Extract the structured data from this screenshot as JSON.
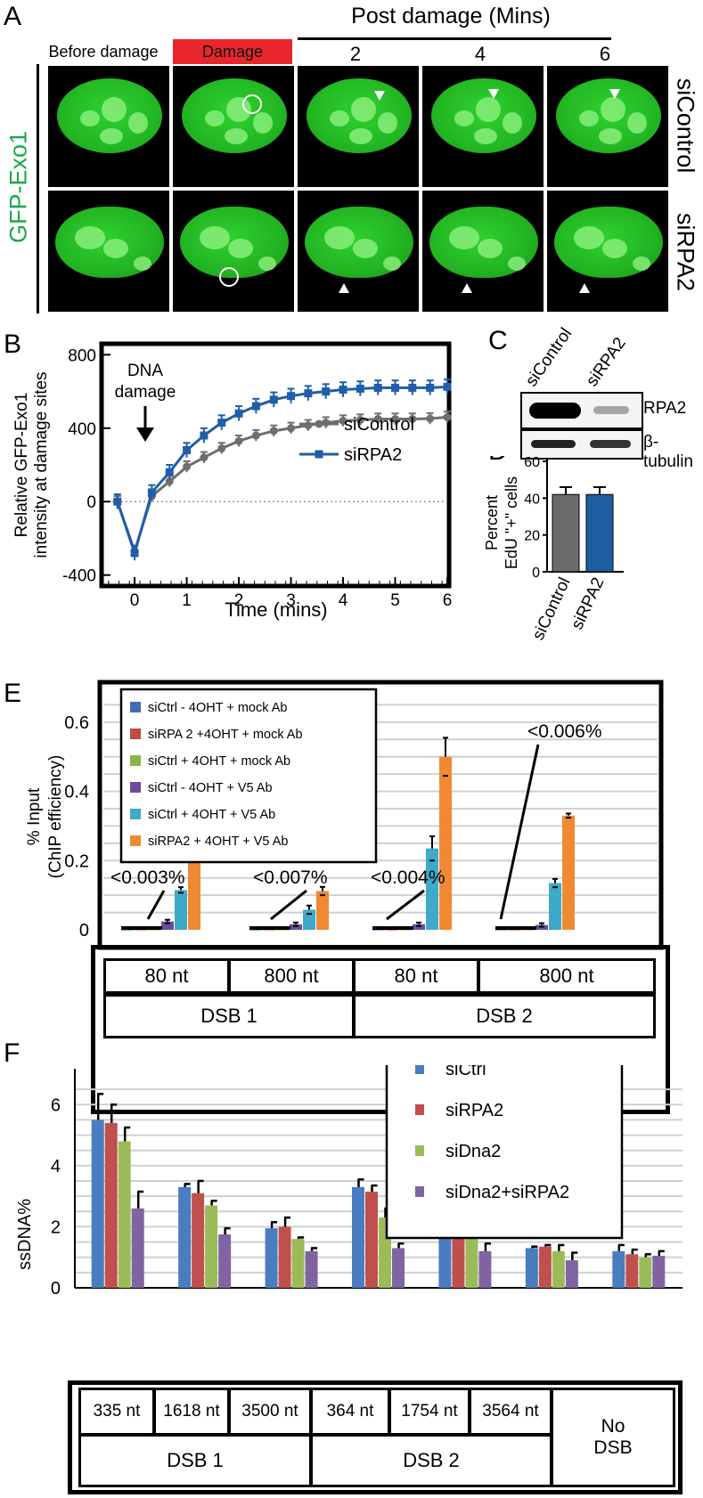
{
  "panelA": {
    "label": "A",
    "post_damage_header": "Post damage (Mins)",
    "col_before": "Before damage",
    "col_damage": "Damage",
    "col_t2": "2",
    "col_t4": "4",
    "col_t6": "6",
    "ylabel": "GFP-Exo1",
    "row1": "siControl",
    "row2": "siRPA2",
    "damage_color": "#e8262c",
    "gfp_color": "#1aa84a"
  },
  "panelB": {
    "label": "B",
    "annotation": "DNA damage"
  },
  "panelC": {
    "label": "C",
    "lane1": "siControl",
    "lane2": "siRPA2",
    "band1": "RPA2",
    "band2": "β-tubulin"
  },
  "panelE": {
    "label": "E",
    "callouts": [
      "<0.003%",
      "<0.007%",
      "<0.004%",
      "<0.006%"
    ],
    "row1": [
      "80 nt",
      "800 nt",
      "80 nt",
      "800 nt"
    ],
    "row2": [
      "DSB 1",
      "DSB 2"
    ]
  },
  "panelF": {
    "label": "F",
    "row1": [
      "335 nt",
      "1618 nt",
      "3500 nt",
      "364 nt",
      "1754 nt",
      "3564 nt"
    ],
    "nodsb": "No DSB",
    "row2": [
      "DSB 1",
      "DSB 2"
    ]
  },
  "chart_data": [
    {
      "id": "B",
      "type": "line",
      "title": "",
      "xlabel": "Time (mins)",
      "ylabel": "Relative GFP-Exo1 intensity at damage sites",
      "xlim": [
        -0.6,
        6
      ],
      "ylim": [
        -450,
        850
      ],
      "xticks": [
        "0",
        "1",
        "2",
        "3",
        "4",
        "5",
        "6"
      ],
      "yticks": [
        "-400",
        "0",
        "400",
        "800"
      ],
      "legend": [
        "siControl",
        "siRPA2"
      ],
      "legend_position": "middle-right",
      "series": [
        {
          "name": "siControl",
          "color": "#6e6e6e",
          "x": [
            -0.33,
            0,
            0.33,
            0.67,
            1,
            1.33,
            1.67,
            2,
            2.33,
            2.67,
            3,
            3.33,
            3.67,
            4,
            4.33,
            4.67,
            5,
            5.33,
            5.67,
            6
          ],
          "y": [
            0,
            -270,
            30,
            110,
            190,
            240,
            290,
            330,
            360,
            385,
            400,
            415,
            430,
            440,
            445,
            450,
            450,
            450,
            452,
            460
          ],
          "err": 30
        },
        {
          "name": "siRPA2",
          "color": "#1f5ea8",
          "x": [
            -0.33,
            0,
            0.33,
            0.67,
            1,
            1.33,
            1.67,
            2,
            2.33,
            2.67,
            3,
            3.33,
            3.67,
            4,
            4.33,
            4.67,
            5,
            5.33,
            5.67,
            6
          ],
          "y": [
            0,
            -280,
            50,
            160,
            280,
            360,
            430,
            480,
            520,
            555,
            575,
            590,
            600,
            610,
            615,
            620,
            620,
            620,
            620,
            625
          ],
          "err": 40
        }
      ]
    },
    {
      "id": "D",
      "type": "bar",
      "ylabel": "Percent EdU \"+\" cells",
      "categories": [
        "siControl",
        "siRPA2"
      ],
      "values": [
        42,
        42
      ],
      "errors": [
        4,
        4
      ],
      "colors": [
        "#6b6b6b",
        "#1d5ea0"
      ],
      "yticks": [
        "0",
        "20",
        "40",
        "60"
      ],
      "ylim": [
        0,
        60
      ]
    },
    {
      "id": "E",
      "type": "bar",
      "ylabel": "% Input (ChIP efficiency)",
      "ylim": [
        0,
        0.7
      ],
      "yticks": [
        "0",
        "0.2",
        "0.4",
        "0.6"
      ],
      "groups": [
        "DSB1 80 nt",
        "DSB1 800 nt",
        "DSB2 80 nt",
        "DSB2 800 nt"
      ],
      "series": [
        {
          "name": "siCtrl - 4OHT + mock Ab",
          "color": "#3d6fb0",
          "values": [
            0.001,
            0.001,
            0.001,
            0.001
          ],
          "errors": [
            0,
            0,
            0,
            0
          ]
        },
        {
          "name": "siRPA 2 +4OHT + mock Ab",
          "color": "#bf4b45",
          "values": [
            0.001,
            0.001,
            0.001,
            0.001
          ],
          "errors": [
            0,
            0,
            0,
            0
          ]
        },
        {
          "name": "siCtrl + 4OHT + mock Ab",
          "color": "#8db346",
          "values": [
            0.001,
            0.001,
            0.001,
            0.001
          ],
          "errors": [
            0,
            0,
            0,
            0
          ]
        },
        {
          "name": "siCtrl - 4OHT + V5 Ab",
          "color": "#6d4a9e",
          "values": [
            0.024,
            0.016,
            0.016,
            0.014
          ],
          "errors": [
            0.005,
            0.005,
            0.005,
            0.005
          ]
        },
        {
          "name": "siCtrl + 4OHT + V5 Ab",
          "color": "#3fa9c9",
          "values": [
            0.115,
            0.058,
            0.235,
            0.135
          ],
          "errors": [
            0.008,
            0.012,
            0.035,
            0.012
          ]
        },
        {
          "name": "siRPA2 + 4OHT + V5 Ab",
          "color": "#ef8a32",
          "values": [
            0.23,
            0.112,
            0.5,
            0.33
          ],
          "errors": [
            0.03,
            0.012,
            0.055,
            0.006
          ]
        }
      ]
    },
    {
      "id": "F",
      "type": "bar",
      "ylabel": "ssDNA%",
      "ylim": [
        0,
        7
      ],
      "yticks": [
        "0",
        "2",
        "4",
        "6"
      ],
      "groups": [
        "335 nt",
        "1618 nt",
        "3500 nt",
        "364 nt",
        "1754 nt",
        "3564 nt",
        "No DSB"
      ],
      "series": [
        {
          "name": "siCtrl",
          "color": "#4a7dbf",
          "values": [
            5.5,
            3.3,
            1.95,
            3.3,
            1.9,
            1.3,
            1.2
          ],
          "errors": [
            0.85,
            0.1,
            0.2,
            0.25,
            0.05,
            0.05,
            0.2
          ]
        },
        {
          "name": "siRPA2",
          "color": "#c0504d",
          "values": [
            5.4,
            3.1,
            2.0,
            3.15,
            1.8,
            1.35,
            1.1
          ],
          "errors": [
            0.6,
            0.4,
            0.3,
            0.2,
            0.35,
            0.05,
            0.15
          ]
        },
        {
          "name": "siDna2",
          "color": "#9bbb59",
          "values": [
            4.8,
            2.7,
            1.6,
            2.3,
            1.6,
            1.2,
            1.0
          ],
          "errors": [
            0.45,
            0.15,
            0.05,
            0.3,
            0.25,
            0.2,
            0.1
          ]
        },
        {
          "name": "siDna2+siRPA2",
          "color": "#8064a2",
          "values": [
            2.6,
            1.75,
            1.2,
            1.3,
            1.2,
            0.9,
            1.05
          ],
          "errors": [
            0.55,
            0.2,
            0.1,
            0.15,
            0.25,
            0.25,
            0.15
          ]
        }
      ]
    }
  ]
}
